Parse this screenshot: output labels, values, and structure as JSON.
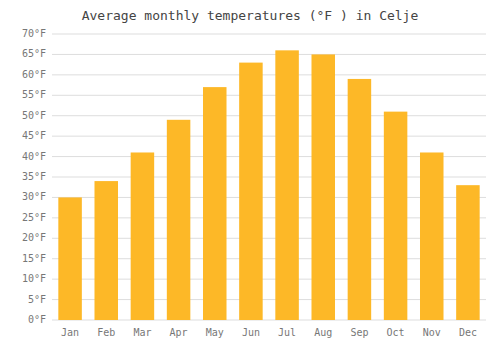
{
  "chart_data": {
    "type": "bar",
    "title": "Average monthly temperatures (°F ) in Celje",
    "categories": [
      "Jan",
      "Feb",
      "Mar",
      "Apr",
      "May",
      "Jun",
      "Jul",
      "Aug",
      "Sep",
      "Oct",
      "Nov",
      "Dec"
    ],
    "values": [
      30,
      34,
      41,
      49,
      57,
      63,
      66,
      65,
      59,
      51,
      41,
      33
    ],
    "color": "#FDB827",
    "ylim": [
      0,
      70
    ],
    "yticks": [
      {
        "value": 0,
        "label": "0°F"
      },
      {
        "value": 5,
        "label": "5°F"
      },
      {
        "value": 10,
        "label": "10°F"
      },
      {
        "value": 15,
        "label": "15°F"
      },
      {
        "value": 20,
        "label": "20°F"
      },
      {
        "value": 25,
        "label": "25°F"
      },
      {
        "value": 30,
        "label": "30°F"
      },
      {
        "value": 35,
        "label": "35°F"
      },
      {
        "value": 40,
        "label": "40°F"
      },
      {
        "value": 45,
        "label": "45°F"
      },
      {
        "value": 50,
        "label": "50°F"
      },
      {
        "value": 55,
        "label": "55°F"
      },
      {
        "value": 60,
        "label": "60°F"
      },
      {
        "value": 65,
        "label": "65°F"
      },
      {
        "value": 70,
        "label": "70°F"
      }
    ],
    "grid": true
  }
}
